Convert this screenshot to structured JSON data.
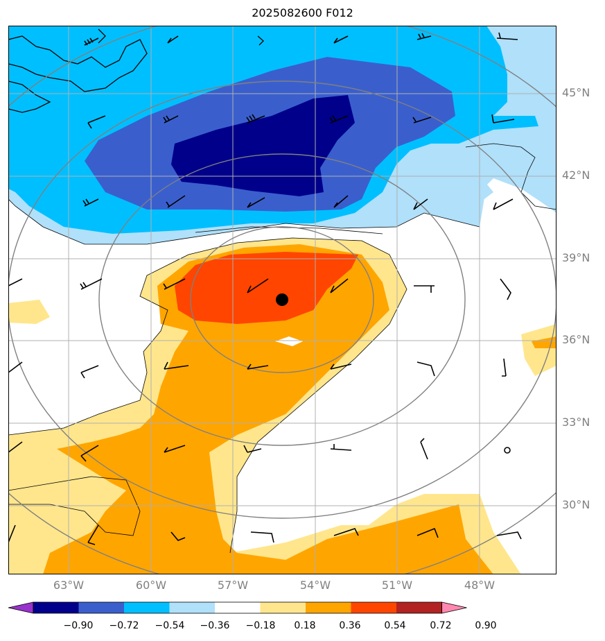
{
  "title": "2025082600 F012",
  "map": {
    "lon_range": [
      -65.3,
      -45.3
    ],
    "lat_range": [
      27.5,
      47.5
    ],
    "lat_labels": [
      {
        "lat": 45,
        "text": "45°N"
      },
      {
        "lat": 42,
        "text": "42°N"
      },
      {
        "lat": 39,
        "text": "39°N"
      },
      {
        "lat": 36,
        "text": "36°N"
      },
      {
        "lat": 33,
        "text": "33°N"
      },
      {
        "lat": 30,
        "text": "30°N"
      }
    ],
    "lon_labels": [
      {
        "lon": -63,
        "text": "63°W"
      },
      {
        "lon": -60,
        "text": "60°W"
      },
      {
        "lon": -57,
        "text": "57°W"
      },
      {
        "lon": -54,
        "text": "54°W"
      },
      {
        "lon": -51,
        "text": "51°W"
      },
      {
        "lon": -48,
        "text": "48°W"
      }
    ],
    "center_marker": {
      "lon": -55.2,
      "lat": 37.5
    },
    "range_rings_deg": [
      3,
      6,
      9,
      12
    ]
  },
  "colorbar": {
    "colors": [
      "#9932cc",
      "#00008b",
      "#3a5fcd",
      "#00bfff",
      "#b0e0fa",
      "#ffffff",
      "#ffe68c",
      "#ffa500",
      "#ff4500",
      "#b22222",
      "#ff88b0"
    ],
    "ticks": [
      "−0.90",
      "−0.72",
      "−0.54",
      "−0.36",
      "−0.18",
      "0.18",
      "0.36",
      "0.54",
      "0.72",
      "0.90"
    ]
  }
}
